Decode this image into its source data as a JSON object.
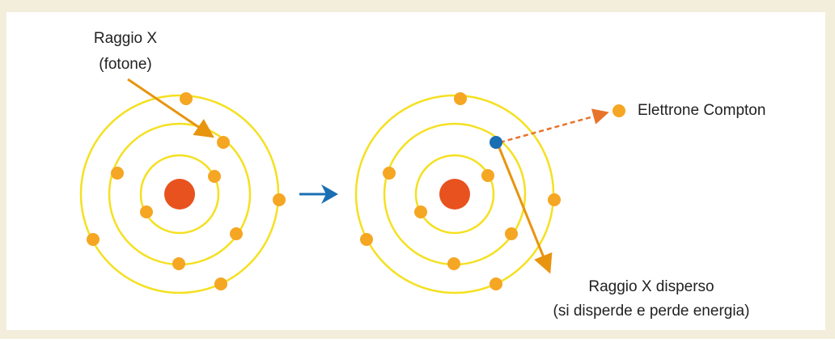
{
  "labels": {
    "incoming": "Raggio X",
    "incoming_sub": "(fotone)",
    "electron": "Elettrone Compton",
    "scattered": "Raggio X disperso",
    "scattered_sub": "(si disperde e perde energia)"
  }
}
